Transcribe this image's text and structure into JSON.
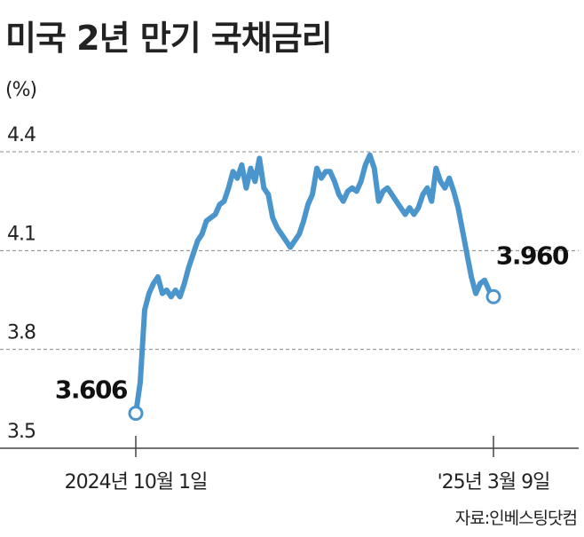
{
  "chart_data": {
    "type": "line",
    "title": "미국 2년 만기 국채금리",
    "y_unit_label": "(%)",
    "source": "자료:인베스팅닷컴",
    "color": "#4a95cc",
    "ylim": [
      3.5,
      4.4
    ],
    "yticks": [
      3.5,
      3.8,
      4.1,
      4.4
    ],
    "grid": true,
    "categories": [
      "2024년 10월 1일",
      null,
      null,
      null,
      null,
      null,
      null,
      null,
      null,
      null,
      null,
      null,
      null,
      null,
      null,
      null,
      null,
      null,
      null,
      null,
      null,
      null,
      null,
      null,
      null,
      null,
      null,
      null,
      null,
      null,
      null,
      null,
      null,
      null,
      null,
      null,
      null,
      null,
      null,
      null,
      null,
      null,
      null,
      null,
      null,
      null,
      null,
      null,
      null,
      null,
      null,
      null,
      null,
      null,
      null,
      null,
      null,
      null,
      null,
      null,
      null,
      null,
      null,
      null,
      null,
      null,
      null,
      null,
      null,
      null,
      null,
      null,
      null,
      null,
      null,
      null,
      null,
      null,
      null,
      null,
      null,
      "'25년 3월 9일"
    ],
    "values": [
      3.606,
      3.7,
      3.92,
      3.97,
      4.0,
      4.02,
      3.97,
      3.98,
      3.96,
      3.98,
      3.96,
      4.0,
      4.05,
      4.09,
      4.13,
      4.15,
      4.19,
      4.2,
      4.21,
      4.24,
      4.25,
      4.29,
      4.34,
      4.32,
      4.36,
      4.29,
      4.35,
      4.31,
      4.38,
      4.29,
      4.27,
      4.2,
      4.17,
      4.15,
      4.13,
      4.11,
      4.13,
      4.15,
      4.19,
      4.24,
      4.27,
      4.35,
      4.32,
      4.34,
      4.34,
      4.31,
      4.27,
      4.25,
      4.28,
      4.29,
      4.28,
      4.31,
      4.36,
      4.39,
      4.35,
      4.25,
      4.28,
      4.29,
      4.27,
      4.25,
      4.23,
      4.21,
      4.23,
      4.21,
      4.23,
      4.27,
      4.29,
      4.25,
      4.35,
      4.31,
      4.29,
      4.32,
      4.28,
      4.23,
      4.16,
      4.09,
      4.02,
      3.97,
      4.0,
      4.01,
      3.98,
      3.96
    ],
    "value_labels": [
      "3.606",
      null,
      null,
      null,
      null,
      null,
      null,
      null,
      null,
      null,
      null,
      null,
      null,
      null,
      null,
      null,
      null,
      null,
      null,
      null,
      null,
      null,
      null,
      null,
      null,
      null,
      null,
      null,
      null,
      null,
      null,
      null,
      null,
      null,
      null,
      null,
      null,
      null,
      null,
      null,
      null,
      null,
      null,
      null,
      null,
      null,
      null,
      null,
      null,
      null,
      null,
      null,
      null,
      null,
      null,
      null,
      null,
      null,
      null,
      null,
      null,
      null,
      null,
      null,
      null,
      null,
      null,
      null,
      null,
      null,
      null,
      null,
      null,
      null,
      null,
      null,
      null,
      null,
      null,
      null,
      null,
      "3.960"
    ]
  }
}
